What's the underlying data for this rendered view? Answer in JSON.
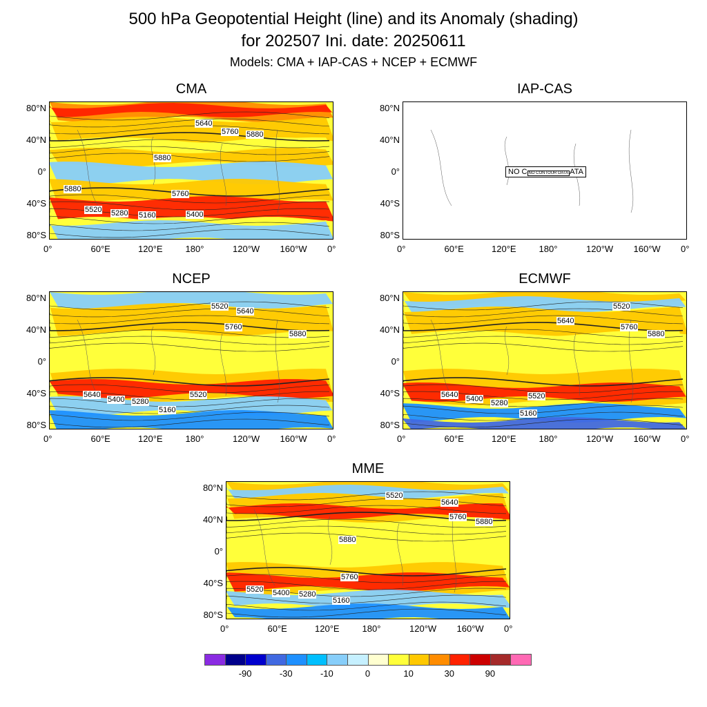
{
  "title": {
    "line1": "500 hPa Geopotential Height (line) and its Anomaly (shading)",
    "line2": "for 202507 Ini. date: 20250611",
    "line3": "Models: CMA + IAP-CAS + NCEP + ECMWF"
  },
  "lon_ticks": [
    "0°",
    "60°E",
    "120°E",
    "180°",
    "120°W",
    "160°W",
    "0°"
  ],
  "lat_ticks": [
    "80°N",
    "40°N",
    "0°",
    "40°S",
    "80°S"
  ],
  "panels": [
    {
      "name": "CMA",
      "has_data": true,
      "contour_labels": [
        "5640",
        "5760",
        "5880",
        "5880",
        "5880",
        "5760",
        "5520",
        "5280",
        "5160",
        "5400"
      ]
    },
    {
      "name": "IAP-CAS",
      "has_data": false,
      "no_data_text": "NO C",
      "no_data_inner": "NO CONTOUR DATA",
      "no_data_tail": "ATA"
    },
    {
      "name": "NCEP",
      "has_data": true,
      "contour_labels": [
        "5520",
        "5640",
        "5760",
        "5880",
        "5640",
        "5400",
        "5280",
        "5160",
        "5520"
      ]
    },
    {
      "name": "ECMWF",
      "has_data": true,
      "contour_labels": [
        "5520",
        "5640",
        "5760",
        "5880",
        "5640",
        "5400",
        "5280",
        "5520",
        "5160"
      ]
    },
    {
      "name": "MME",
      "has_data": true,
      "contour_labels": [
        "5520",
        "5640",
        "5760",
        "5880",
        "5880",
        "5760",
        "5520",
        "5400",
        "5280",
        "5160"
      ]
    }
  ],
  "colorbar": {
    "colors": [
      "#8a2be2",
      "#00008b",
      "#0000cd",
      "#4169e1",
      "#1e90ff",
      "#00bfff",
      "#87cefa",
      "#c6f0ff",
      "#ffffd0",
      "#ffff3a",
      "#ffc800",
      "#ff8c00",
      "#ff2200",
      "#cc0000",
      "#a52a2a",
      "#ff69b4"
    ],
    "labels": [
      "-90",
      "-30",
      "-10",
      "0",
      "10",
      "30",
      "90"
    ]
  }
}
